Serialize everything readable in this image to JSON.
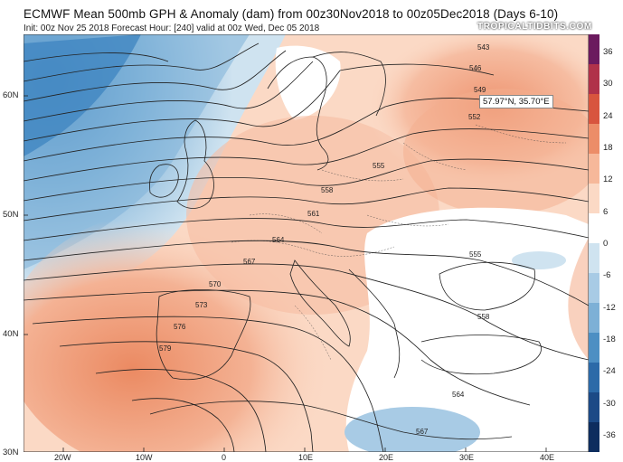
{
  "header": {
    "title": "ECMWF Mean 500mb GPH & Anomaly (dam) from 00z30Nov2018 to 00z05Dec2018 (Days 6-10)",
    "subtitle": "Init: 00z Nov 25 2018   Forecast Hour: [240]   valid at 00z Wed, Dec 05 2018",
    "brand": "TROPICALTIDBITS.COM"
  },
  "tooltip": {
    "coordinates": "57.97°N, 35.70°E"
  },
  "colorbar": {
    "labels": [
      "36",
      "30",
      "24",
      "18",
      "12",
      "6",
      "0",
      "-6",
      "-12",
      "-18",
      "-24",
      "-30",
      "-36"
    ],
    "colors": [
      "#6b1a5e",
      "#b0324a",
      "#d8553e",
      "#ec8d68",
      "#f6b89a",
      "#fbd9c5",
      "#ffffff",
      "#cfe3f0",
      "#a8cbe5",
      "#7db0d6",
      "#4d8fc3",
      "#2c6aa8",
      "#1c4a86",
      "#0e2d5e"
    ]
  },
  "axes": {
    "lat_labels": [
      "60N",
      "50N",
      "40N",
      "30N"
    ],
    "lon_labels": [
      "20W",
      "10W",
      "0",
      "10E",
      "20E",
      "30E",
      "40E"
    ]
  },
  "contour_labels": [
    "543",
    "546",
    "549",
    "552",
    "555",
    "558",
    "561",
    "564",
    "567",
    "570",
    "573",
    "576",
    "579",
    "555",
    "558",
    "564",
    "567"
  ]
}
